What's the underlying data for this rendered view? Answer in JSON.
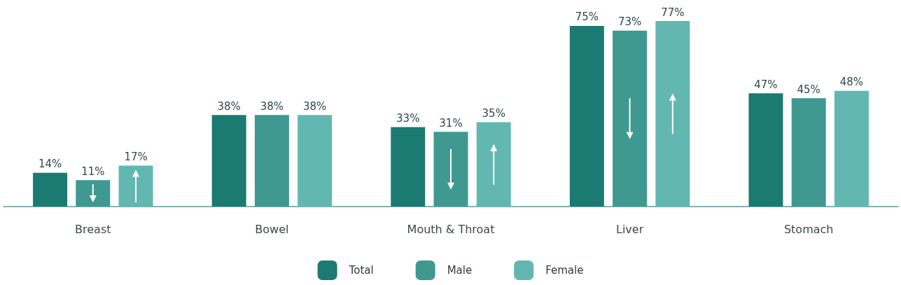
{
  "chart_data": {
    "type": "bar",
    "categories": [
      "Breast",
      "Bowel",
      "Mouth & Throat",
      "Liver",
      "Stomach"
    ],
    "series": [
      {
        "name": "Total",
        "color": "#1b7b72",
        "values": [
          14,
          38,
          33,
          75,
          47
        ],
        "value_labels": [
          "14%",
          "38%",
          "33%",
          "75%",
          "47%"
        ]
      },
      {
        "name": "Male",
        "color": "#3f9990",
        "values": [
          11,
          38,
          31,
          73,
          45
        ],
        "value_labels": [
          "11%",
          "38%",
          "31%",
          "73%",
          "45%"
        ]
      },
      {
        "name": "Female",
        "color": "#62b8b0",
        "values": [
          17,
          38,
          35,
          77,
          48
        ],
        "value_labels": [
          "17%",
          "38%",
          "35%",
          "77%",
          "48%"
        ]
      }
    ],
    "legend": "bottom",
    "grid": false
  }
}
